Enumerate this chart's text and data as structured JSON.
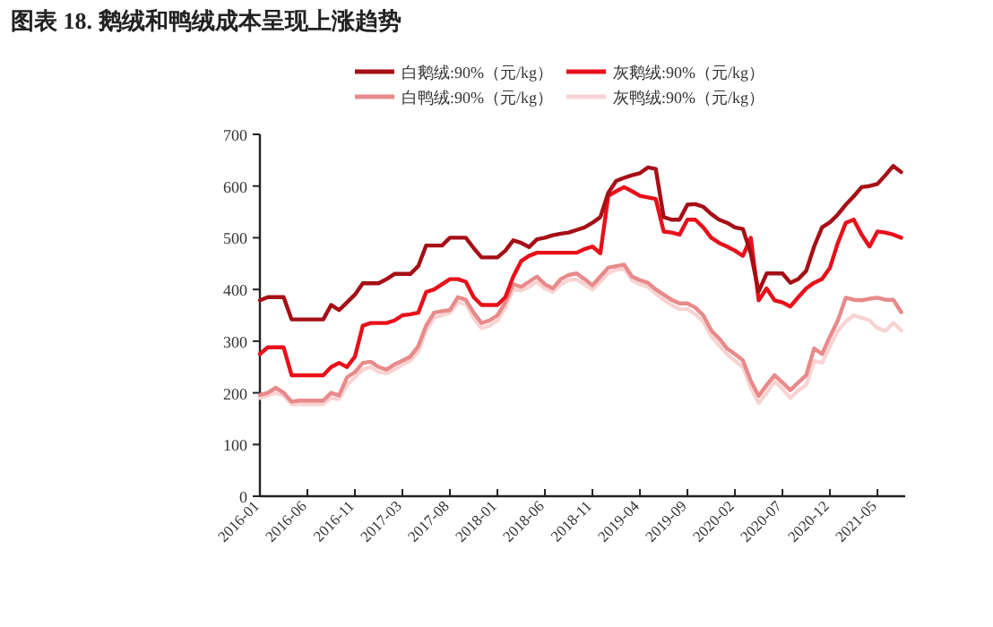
{
  "chart_data": {
    "type": "line",
    "title": "图表 18. 鹅绒和鸭绒成本呈现上涨趋势",
    "categories": [
      "2016-01",
      null,
      null,
      null,
      null,
      null,
      "2016-06",
      null,
      null,
      null,
      null,
      null,
      "2016-11",
      null,
      null,
      null,
      null,
      null,
      "2017-03",
      null,
      null,
      null,
      null,
      null,
      "2017-08",
      null,
      null,
      null,
      null,
      null,
      "2018-01",
      null,
      null,
      null,
      null,
      null,
      "2018-06",
      null,
      null,
      null,
      null,
      null,
      "2018-11",
      null,
      null,
      null,
      null,
      null,
      "2019-04",
      null,
      null,
      null,
      null,
      null,
      "2019-09",
      null,
      null,
      null,
      null,
      null,
      "2020-02",
      null,
      null,
      null,
      null,
      null,
      "2020-07",
      null,
      null,
      null,
      null,
      null,
      "2020-12",
      null,
      null,
      null,
      null,
      null,
      "2021-05",
      null,
      null,
      null
    ],
    "series": [
      {
        "name": "白鹅绒:90%（元/kg）",
        "color": "#a50f15",
        "values": [
          379,
          385,
          385,
          385,
          342,
          342,
          342,
          342,
          342,
          370,
          360,
          375,
          390,
          412,
          412,
          412,
          420,
          430,
          430,
          430,
          445,
          485,
          485,
          485,
          500,
          500,
          500,
          480,
          462,
          462,
          462,
          475,
          495,
          490,
          482,
          497,
          500,
          505,
          508,
          510,
          515,
          520,
          529,
          540,
          587,
          610,
          616,
          621,
          625,
          636,
          633,
          540,
          535,
          535,
          564,
          565,
          560,
          546,
          535,
          529,
          520,
          517,
          470,
          396,
          431,
          431,
          431,
          413,
          420,
          436,
          483,
          520,
          530,
          545,
          564,
          580,
          598,
          600,
          604,
          621,
          639,
          627
        ]
      },
      {
        "name": "灰鹅绒:90%（元/kg）",
        "color": "#e8101a",
        "values": [
          275,
          288,
          288,
          288,
          234,
          234,
          234,
          234,
          234,
          250,
          258,
          250,
          270,
          330,
          335,
          335,
          335,
          340,
          350,
          352,
          355,
          395,
          400,
          410,
          420,
          420,
          415,
          385,
          370,
          370,
          370,
          385,
          425,
          455,
          465,
          471,
          471,
          471,
          471,
          471,
          471,
          478,
          483,
          470,
          581,
          590,
          598,
          590,
          581,
          578,
          575,
          512,
          510,
          506,
          535,
          535,
          520,
          500,
          490,
          483,
          475,
          465,
          500,
          379,
          402,
          379,
          375,
          367,
          385,
          402,
          413,
          420,
          442,
          490,
          529,
          535,
          506,
          483,
          512,
          510,
          506,
          500
        ]
      },
      {
        "name": "白鸭绒:90%（元/kg）",
        "color": "#e88a8a",
        "values": [
          196,
          200,
          210,
          200,
          183,
          185,
          185,
          185,
          185,
          200,
          195,
          230,
          240,
          258,
          260,
          250,
          245,
          255,
          262,
          270,
          290,
          330,
          355,
          358,
          360,
          385,
          380,
          355,
          335,
          340,
          350,
          375,
          410,
          405,
          415,
          425,
          410,
          402,
          420,
          428,
          431,
          420,
          408,
          425,
          442,
          445,
          448,
          425,
          418,
          413,
          400,
          390,
          380,
          373,
          373,
          365,
          350,
          321,
          305,
          286,
          275,
          263,
          223,
          194,
          215,
          234,
          220,
          205,
          220,
          234,
          286,
          275,
          309,
          340,
          384,
          380,
          379,
          382,
          384,
          380,
          380,
          356
        ]
      },
      {
        "name": "灰鸭绒:90%（元/kg）",
        "color": "#f9d3d3",
        "values": [
          190,
          195,
          200,
          195,
          178,
          178,
          178,
          178,
          178,
          190,
          188,
          215,
          230,
          245,
          250,
          240,
          238,
          245,
          255,
          262,
          280,
          320,
          345,
          350,
          355,
          375,
          372,
          345,
          325,
          330,
          340,
          365,
          400,
          398,
          405,
          415,
          402,
          395,
          410,
          418,
          420,
          410,
          400,
          415,
          432,
          438,
          440,
          418,
          410,
          405,
          392,
          380,
          370,
          362,
          362,
          352,
          338,
          310,
          292,
          275,
          262,
          250,
          210,
          180,
          200,
          222,
          208,
          190,
          205,
          215,
          262,
          258,
          290,
          320,
          338,
          350,
          345,
          340,
          325,
          320,
          335,
          321
        ]
      }
    ],
    "ylim": [
      0,
      700
    ],
    "yticks": [
      0,
      100,
      200,
      300,
      400,
      500,
      600,
      700
    ],
    "legend": "top",
    "grid": false
  }
}
